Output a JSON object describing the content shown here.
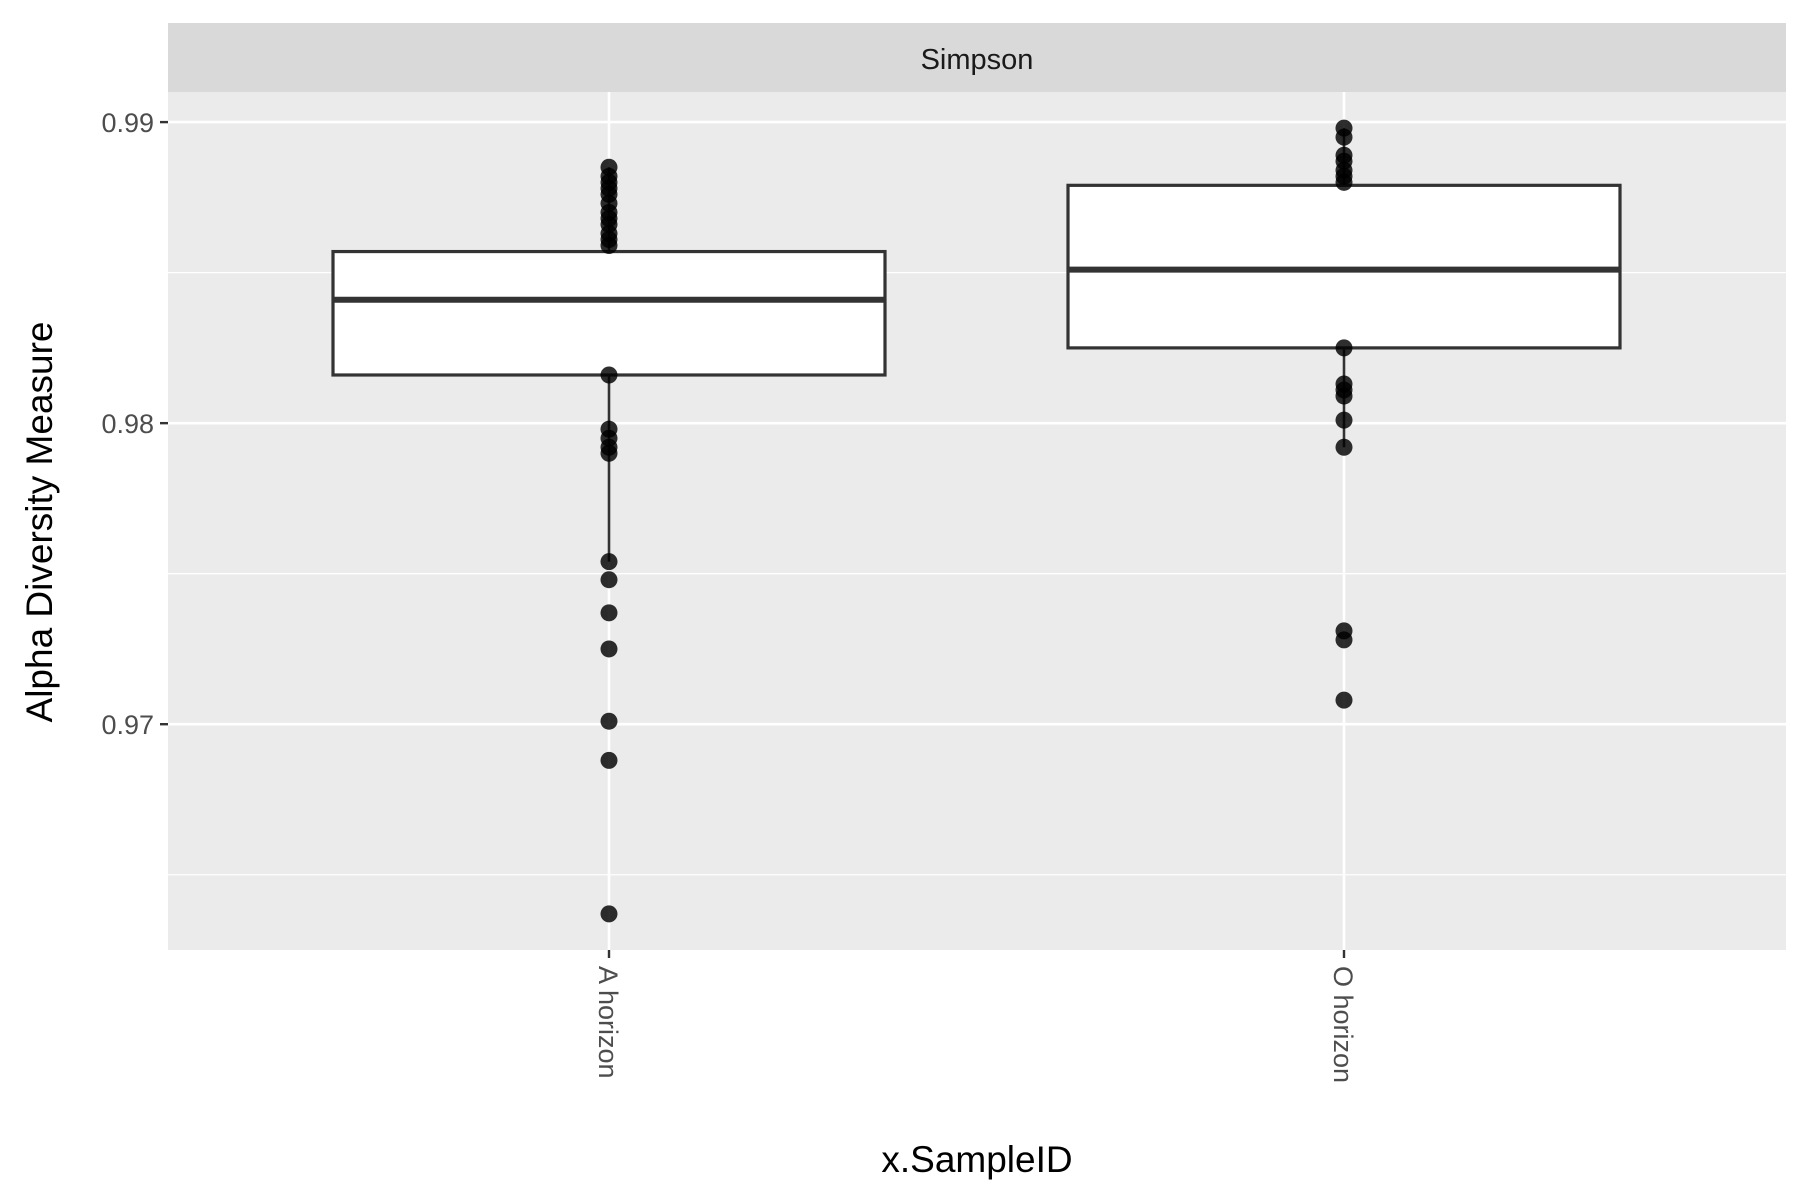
{
  "chart_data": {
    "type": "boxplot",
    "facet_label": "Simpson",
    "xlabel": "x.SampleID",
    "ylabel": "Alpha Diversity Measure",
    "ylim": [
      0.9625,
      0.991
    ],
    "y_ticks": [
      0.97,
      0.98,
      0.99
    ],
    "y_tick_labels": [
      "0.97",
      "0.98",
      "0.99"
    ],
    "y_minor_ticks": [
      0.965,
      0.975,
      0.985
    ],
    "grid": true,
    "categories": [
      "A horizon",
      "O horizon"
    ],
    "boxes": [
      {
        "category": "A horizon",
        "q1": 0.9816,
        "median": 0.9841,
        "q3": 0.9857,
        "whisker_low": 0.9754,
        "whisker_high": 0.9885,
        "points": [
          0.9885,
          0.9882,
          0.988,
          0.9878,
          0.9876,
          0.9873,
          0.987,
          0.9868,
          0.9866,
          0.9863,
          0.9861,
          0.9859,
          0.9816,
          0.9798,
          0.9795,
          0.9792,
          0.979,
          0.9754,
          0.9748,
          0.9737,
          0.9725,
          0.9701,
          0.9688,
          0.9637
        ]
      },
      {
        "category": "O horizon",
        "q1": 0.9825,
        "median": 0.9851,
        "q3": 0.9879,
        "whisker_low": 0.9792,
        "whisker_high": 0.9898,
        "points": [
          0.9898,
          0.9895,
          0.9889,
          0.9887,
          0.9884,
          0.9882,
          0.988,
          0.9825,
          0.9813,
          0.9811,
          0.9809,
          0.9801,
          0.9792,
          0.9731,
          0.9728,
          0.9708
        ]
      }
    ],
    "colors": {
      "panel_background": "#ebebeb",
      "strip_background": "#d9d9d9",
      "grid": "#ffffff",
      "box_fill": "#ffffff",
      "box_stroke": "#333333",
      "points": "#000000"
    }
  }
}
